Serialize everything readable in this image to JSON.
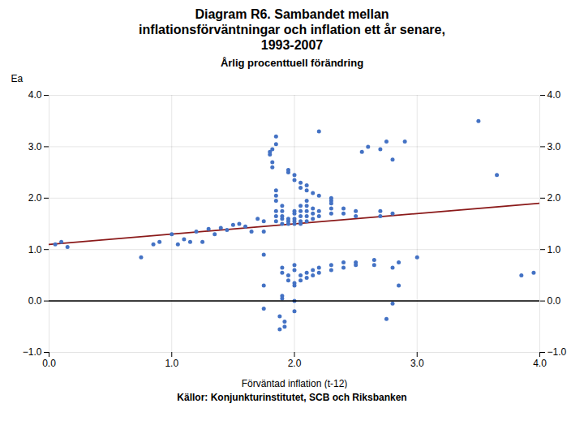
{
  "chart_data": {
    "type": "scatter",
    "title": "Diagram R6. Sambandet mellan\ninflationsförväntningar och inflation ett år senare,\n1993-2007",
    "subtitle": "Årlig procenttuell förändring",
    "caption": "Källor: Konjunkturinstitutet, SCB och Riksbanken",
    "xlabel": "Förväntad inflation (t-12)",
    "ylabel": "Ea",
    "xlim": [
      0,
      4
    ],
    "ylim": [
      -1,
      4
    ],
    "xticks": [
      0,
      1,
      2,
      3,
      4
    ],
    "yticks": [
      -1,
      0,
      1,
      2,
      3,
      4
    ],
    "grid": true,
    "hline": 0,
    "series": [
      {
        "type": "line",
        "color": "#8B1A1A",
        "x": [
          0,
          4
        ],
        "values": [
          1.1,
          1.9
        ]
      },
      {
        "type": "scatter",
        "color": "#4472C4",
        "x": [
          0.05,
          0.1,
          0.15,
          0.75,
          0.85,
          0.9,
          1.0,
          1.05,
          1.1,
          1.15,
          1.2,
          1.25,
          1.3,
          1.35,
          1.4,
          1.45,
          1.5,
          1.55,
          1.6,
          1.65,
          1.7,
          1.75,
          1.75,
          1.75,
          1.75,
          1.75,
          1.8,
          1.8,
          1.82,
          1.82,
          1.82,
          1.85,
          1.85,
          1.85,
          1.85,
          1.85,
          1.85,
          1.85,
          1.85,
          1.88,
          1.88,
          1.9,
          1.9,
          1.9,
          1.9,
          1.9,
          1.9,
          1.9,
          1.9,
          1.9,
          1.92,
          1.92,
          1.95,
          1.95,
          1.95,
          1.95,
          1.95,
          1.95,
          1.95,
          2.0,
          2.0,
          2.0,
          2.0,
          2.0,
          2.0,
          2.0,
          2.0,
          2.0,
          2.0,
          2.0,
          2.0,
          2.0,
          2.05,
          2.05,
          2.05,
          2.05,
          2.05,
          2.05,
          2.05,
          2.05,
          2.05,
          2.1,
          2.1,
          2.1,
          2.1,
          2.1,
          2.1,
          2.1,
          2.1,
          2.1,
          2.15,
          2.15,
          2.15,
          2.15,
          2.15,
          2.15,
          2.2,
          2.2,
          2.2,
          2.2,
          2.2,
          2.2,
          2.3,
          2.3,
          2.3,
          2.3,
          2.3,
          2.3,
          2.3,
          2.4,
          2.4,
          2.4,
          2.4,
          2.5,
          2.5,
          2.5,
          2.5,
          2.55,
          2.6,
          2.65,
          2.65,
          2.7,
          2.7,
          2.7,
          2.75,
          2.75,
          2.8,
          2.8,
          2.8,
          2.8,
          2.85,
          2.85,
          2.9,
          3.0,
          3.5,
          3.65,
          3.85,
          3.95
        ],
        "values": [
          1.1,
          1.15,
          1.05,
          0.85,
          1.1,
          1.15,
          1.3,
          1.1,
          1.2,
          1.15,
          1.35,
          1.15,
          1.4,
          1.3,
          1.42,
          1.38,
          1.48,
          1.5,
          1.45,
          1.35,
          1.6,
          1.55,
          1.35,
          0.9,
          0.3,
          -0.15,
          2.9,
          2.85,
          2.95,
          2.6,
          2.7,
          1.55,
          1.65,
          1.75,
          1.95,
          2.05,
          2.15,
          3.05,
          3.2,
          -0.3,
          -0.55,
          0.05,
          0.1,
          1.5,
          1.6,
          1.65,
          1.75,
          1.85,
          0.55,
          0.65,
          -0.5,
          -0.4,
          0.4,
          0.5,
          1.5,
          1.55,
          1.6,
          2.5,
          2.55,
          -0.2,
          0.0,
          0.3,
          0.35,
          0.6,
          0.7,
          1.5,
          1.55,
          1.6,
          1.7,
          1.75,
          2.35,
          2.45,
          0.4,
          0.5,
          1.5,
          1.55,
          1.65,
          1.75,
          1.85,
          2.2,
          2.3,
          0.45,
          0.55,
          1.55,
          1.65,
          1.75,
          1.85,
          1.95,
          2.15,
          2.25,
          0.5,
          0.6,
          1.6,
          1.7,
          1.8,
          2.1,
          0.55,
          0.65,
          1.65,
          1.75,
          2.05,
          3.3,
          0.6,
          0.7,
          1.7,
          1.8,
          1.9,
          1.95,
          2.0,
          0.65,
          0.75,
          1.7,
          1.8,
          0.7,
          0.75,
          1.65,
          1.75,
          2.9,
          3.0,
          0.7,
          0.8,
          1.65,
          1.75,
          2.95,
          3.1,
          -0.35,
          0.65,
          -0.05,
          1.7,
          2.75,
          0.3,
          0.75,
          3.1,
          0.85,
          3.5,
          2.45,
          0.5,
          0.55
        ]
      }
    ]
  }
}
